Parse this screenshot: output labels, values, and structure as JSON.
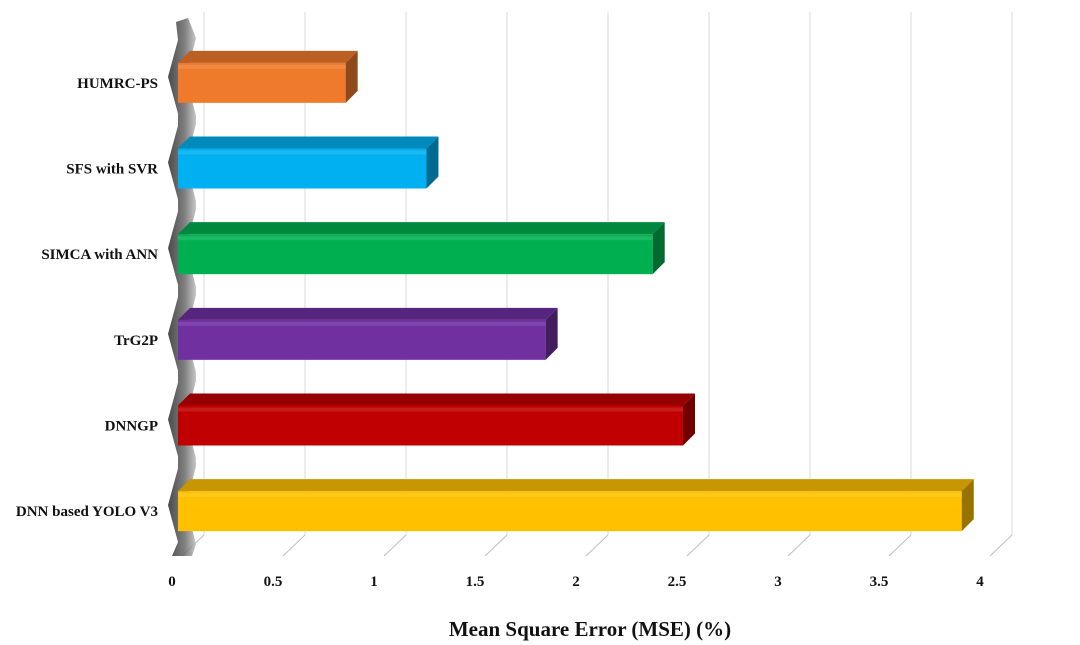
{
  "chart_data": {
    "type": "bar",
    "orientation": "horizontal",
    "style": "3d",
    "categories": [
      "HUMRC-PS",
      "SFS with SVR",
      "SIMCA with ANN",
      "TrG2P",
      "DNNGP",
      "DNN based YOLO V3"
    ],
    "values": [
      0.83,
      1.23,
      2.35,
      1.82,
      2.5,
      3.88
    ],
    "colors": [
      "#F07A2C",
      "#00B0F0",
      "#00B050",
      "#7030A0",
      "#C00000",
      "#FFC000"
    ],
    "xlabel": "Mean Square Error (MSE) (%)",
    "ylabel": "",
    "title": "",
    "xlim": [
      0,
      4
    ],
    "x_ticks": [
      "0",
      "0.5",
      "1",
      "1.5",
      "2",
      "2.5",
      "3",
      "3.5",
      "4"
    ],
    "grid": true,
    "legend": "none"
  }
}
